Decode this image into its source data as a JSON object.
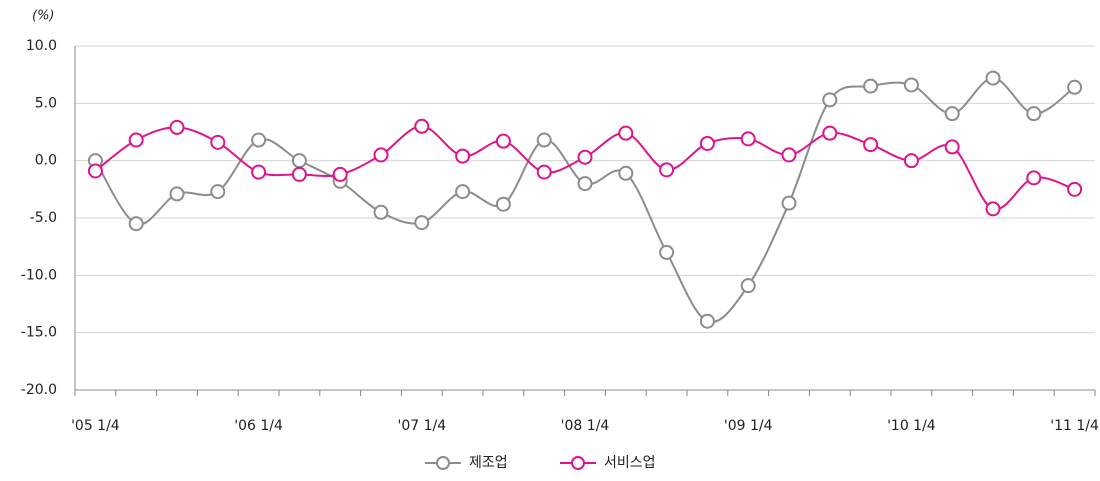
{
  "chart_data": {
    "type": "line",
    "unit_label": "(%)",
    "categories": [
      "'05 1/4",
      null,
      null,
      null,
      "'06 1/4",
      null,
      null,
      null,
      "'07 1/4",
      null,
      null,
      null,
      "'08 1/4",
      null,
      null,
      null,
      "'09 1/4",
      null,
      null,
      null,
      "'10 1/4",
      null,
      null,
      null,
      "'11 1/4"
    ],
    "series": [
      {
        "name": "제조업",
        "color": "#8c8c8c",
        "values": [
          0.0,
          -5.5,
          -2.9,
          -2.7,
          1.8,
          0.0,
          -1.8,
          -4.5,
          -5.4,
          -2.7,
          -3.8,
          1.8,
          -2.0,
          -1.1,
          -8.0,
          -14.0,
          -10.9,
          -3.7,
          5.3,
          6.5,
          6.6,
          4.1,
          7.2,
          4.1,
          6.4
        ]
      },
      {
        "name": "서비스업",
        "color": "#e0138c",
        "values": [
          -0.9,
          1.8,
          2.9,
          1.6,
          -1.0,
          -1.2,
          -1.2,
          0.5,
          3.0,
          0.4,
          1.7,
          -1.0,
          0.3,
          2.4,
          -0.8,
          1.5,
          1.9,
          0.5,
          2.4,
          1.4,
          0.0,
          1.2,
          -4.2,
          -1.5,
          -2.5
        ]
      }
    ],
    "ylim": [
      -20,
      10
    ],
    "yticks": [
      {
        "value": 10,
        "label": "10.0"
      },
      {
        "value": 5,
        "label": "5.0"
      },
      {
        "value": 0,
        "label": "0.0"
      },
      {
        "value": -5,
        "label": "-5.0"
      },
      {
        "value": -10,
        "label": "-10.0"
      },
      {
        "value": -15,
        "label": "-15.0"
      },
      {
        "value": -20,
        "label": "-20.0"
      }
    ],
    "grid": true,
    "legend": "bottom",
    "smooth": true
  }
}
